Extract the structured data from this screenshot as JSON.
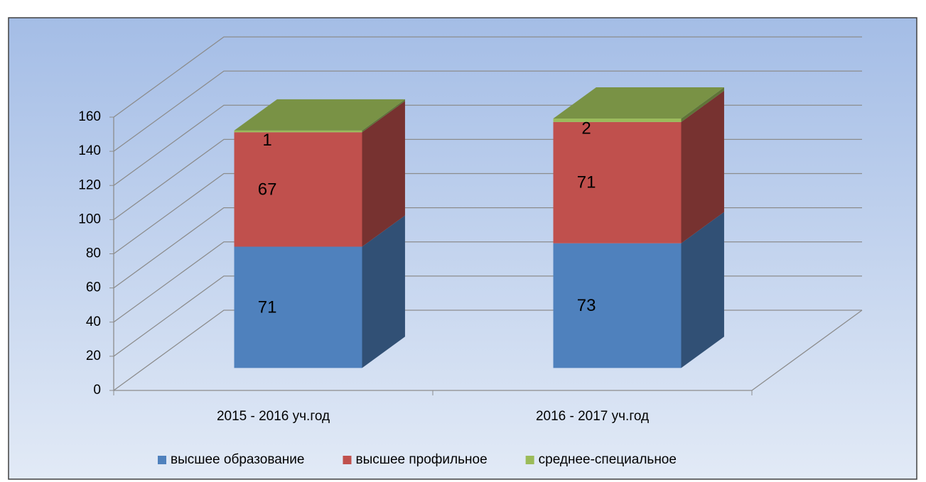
{
  "chart_data": {
    "type": "bar3d_stacked",
    "categories": [
      "2015 - 2016 уч.год",
      "2016 - 2017 уч.год"
    ],
    "series": [
      {
        "name": "высшее образование",
        "color": "#4f81bd",
        "values": [
          71,
          73
        ]
      },
      {
        "name": "высшее профильное",
        "color": "#c0504d",
        "values": [
          67,
          71
        ]
      },
      {
        "name": "среднее-специальное",
        "color": "#9bbb59",
        "values": [
          1,
          2
        ]
      }
    ],
    "ylim": [
      0,
      160
    ],
    "yticks": [
      0,
      20,
      40,
      60,
      80,
      100,
      120,
      140,
      160
    ],
    "grid": true,
    "legend": "bottom"
  }
}
